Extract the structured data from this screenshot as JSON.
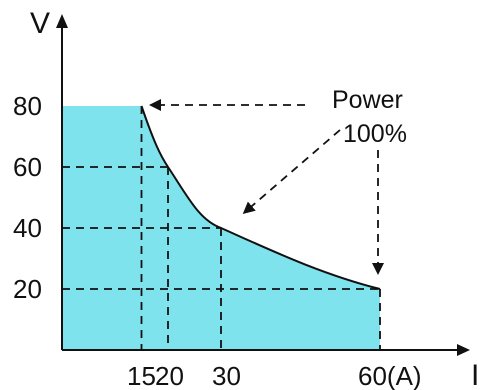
{
  "chart_data": {
    "type": "area",
    "title": "",
    "xlabel": "I",
    "ylabel": "V",
    "xlim": [
      0,
      66
    ],
    "ylim": [
      0,
      92
    ],
    "x_ticks": [
      {
        "value": 15,
        "label": "15"
      },
      {
        "value": 20,
        "label": "20"
      },
      {
        "value": 30,
        "label": "30"
      },
      {
        "value": 60,
        "label": "60(A)"
      }
    ],
    "y_ticks": [
      {
        "value": 80,
        "label": "80"
      },
      {
        "value": 60,
        "label": "60"
      },
      {
        "value": 40,
        "label": "40"
      },
      {
        "value": 20,
        "label": "20"
      }
    ],
    "series": [
      {
        "points": [
          {
            "x": 0,
            "y": 80
          },
          {
            "x": 15,
            "y": 80
          },
          {
            "x": 20,
            "y": 60
          },
          {
            "x": 30,
            "y": 40
          },
          {
            "x": 60,
            "y": 20
          }
        ]
      }
    ],
    "annotation": {
      "lines": [
        "Power",
        "100%"
      ]
    },
    "colors": {
      "fill": "#7fe3ee",
      "line": "#111111",
      "grid": "#111111"
    },
    "grid": "dashed guides to tick values"
  }
}
